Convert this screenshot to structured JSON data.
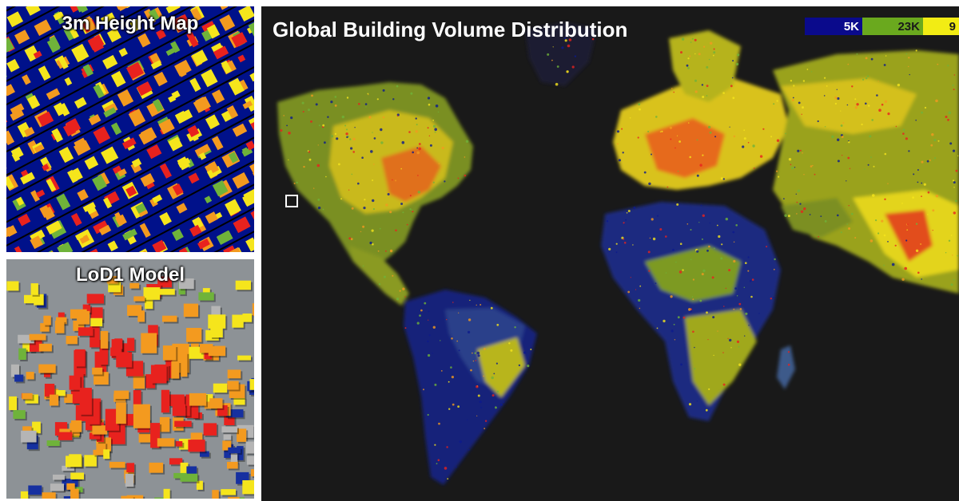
{
  "height_map": {
    "title": "3m Height Map"
  },
  "lod_model": {
    "title": "LoD1 Model"
  },
  "map": {
    "title": "Global Building Volume Distribution",
    "legend": [
      {
        "label": "5K",
        "color": "#0a0a8c"
      },
      {
        "label": "23K",
        "color": "#6aa91e"
      },
      {
        "label": "9",
        "color": "#f2ec14"
      }
    ],
    "background_color": "#191919"
  },
  "colors": {
    "low": "#00118a",
    "green": "#6fb33a",
    "yellow": "#f5e51c",
    "orange": "#f39a1f",
    "red": "#e8221e"
  }
}
